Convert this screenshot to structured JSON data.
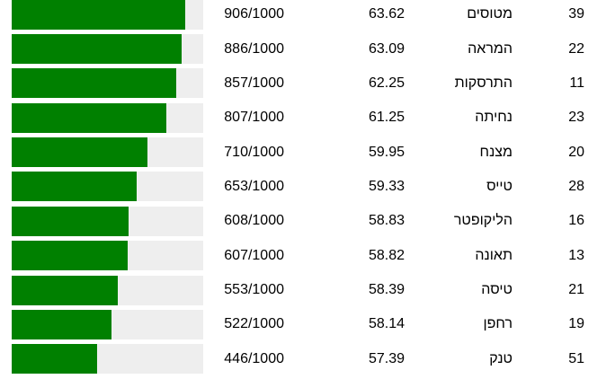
{
  "colors": {
    "bar_fill": "#008000",
    "bar_track": "#eeeeee",
    "text": "#000000",
    "background": "#ffffff"
  },
  "table": {
    "rows": [
      {
        "guess_number": "39",
        "term": "מטוסים",
        "score": "63.62",
        "fraction": "906/1000",
        "rank_value": 906,
        "rank_total": 1000
      },
      {
        "guess_number": "22",
        "term": "המראה",
        "score": "63.09",
        "fraction": "886/1000",
        "rank_value": 886,
        "rank_total": 1000
      },
      {
        "guess_number": "11",
        "term": "התרסקות",
        "score": "62.25",
        "fraction": "857/1000",
        "rank_value": 857,
        "rank_total": 1000
      },
      {
        "guess_number": "23",
        "term": "נחיתה",
        "score": "61.25",
        "fraction": "807/1000",
        "rank_value": 807,
        "rank_total": 1000
      },
      {
        "guess_number": "20",
        "term": "מצנח",
        "score": "59.95",
        "fraction": "710/1000",
        "rank_value": 710,
        "rank_total": 1000
      },
      {
        "guess_number": "28",
        "term": "טייס",
        "score": "59.33",
        "fraction": "653/1000",
        "rank_value": 653,
        "rank_total": 1000
      },
      {
        "guess_number": "16",
        "term": "הליקופטר",
        "score": "58.83",
        "fraction": "608/1000",
        "rank_value": 608,
        "rank_total": 1000
      },
      {
        "guess_number": "13",
        "term": "תאונה",
        "score": "58.82",
        "fraction": "607/1000",
        "rank_value": 607,
        "rank_total": 1000
      },
      {
        "guess_number": "21",
        "term": "טיסה",
        "score": "58.39",
        "fraction": "553/1000",
        "rank_value": 553,
        "rank_total": 1000
      },
      {
        "guess_number": "19",
        "term": "רחפן",
        "score": "58.14",
        "fraction": "522/1000",
        "rank_value": 522,
        "rank_total": 1000
      },
      {
        "guess_number": "51",
        "term": "טנק",
        "score": "57.39",
        "fraction": "446/1000",
        "rank_value": 446,
        "rank_total": 1000
      }
    ]
  },
  "chart_data": {
    "type": "bar",
    "orientation": "horizontal",
    "categories": [
      "מטוסים",
      "המראה",
      "התרסקות",
      "נחיתה",
      "מצנח",
      "טייס",
      "הליקופטר",
      "תאונה",
      "טיסה",
      "רחפן",
      "טנק"
    ],
    "series": [
      {
        "name": "rank_of_1000",
        "values": [
          906,
          886,
          857,
          807,
          710,
          653,
          608,
          607,
          553,
          522,
          446
        ]
      },
      {
        "name": "similarity_score",
        "values": [
          63.62,
          63.09,
          62.25,
          61.25,
          59.95,
          59.33,
          58.83,
          58.82,
          58.39,
          58.14,
          57.39
        ]
      },
      {
        "name": "guess_number",
        "values": [
          39,
          22,
          11,
          23,
          20,
          28,
          16,
          13,
          21,
          19,
          51
        ]
      }
    ],
    "title": "",
    "xlabel": "",
    "ylabel": "",
    "xlim": [
      0,
      1000
    ],
    "grid": false,
    "legend": false,
    "bar_color": "#008000",
    "track_color": "#eeeeee"
  }
}
